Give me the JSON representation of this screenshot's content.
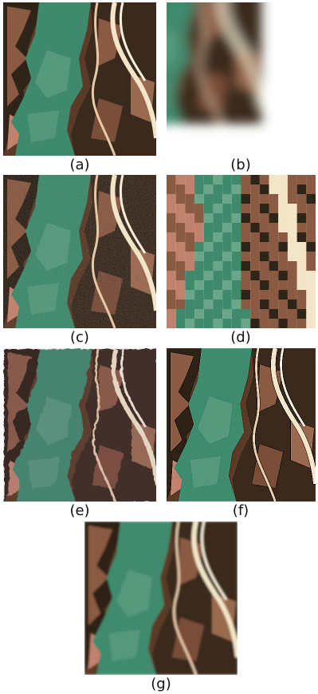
{
  "panels": [
    {
      "id": "a",
      "caption": "(a)",
      "variant": "sharp"
    },
    {
      "id": "b",
      "caption": "(b)",
      "variant": "blur-zoom"
    },
    {
      "id": "c",
      "caption": "(c)",
      "variant": "noisy"
    },
    {
      "id": "d",
      "caption": "(d)",
      "variant": "pixelated"
    },
    {
      "id": "e",
      "caption": "(e)",
      "variant": "artifact"
    },
    {
      "id": "f",
      "caption": "(f)",
      "variant": "sharpened"
    },
    {
      "id": "g",
      "caption": "(g)",
      "variant": "smooth"
    }
  ],
  "colors": {
    "water": "#3f8a6d",
    "water_light": "#6aa68a",
    "land_dark": "#2f2418",
    "land_brown": "#8a5a42",
    "land_pink": "#c0826c",
    "road": "#f3e6c8"
  }
}
